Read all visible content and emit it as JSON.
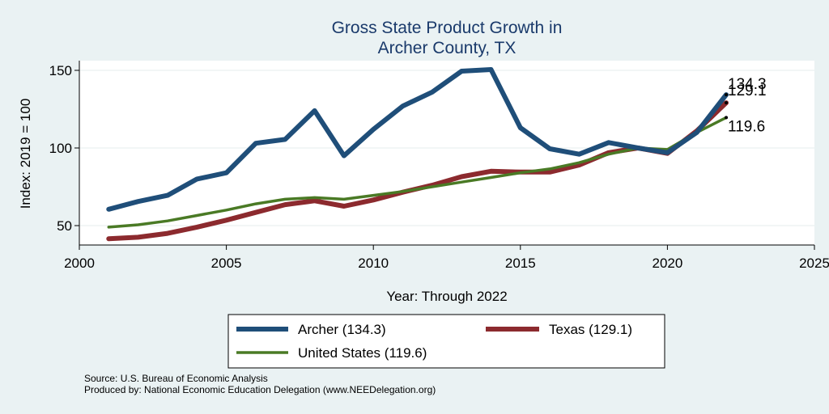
{
  "chart_data": {
    "type": "line",
    "title_lines": [
      "Gross State Product Growth in",
      "Archer County, TX"
    ],
    "xlabel": "Year: Through 2022",
    "ylabel": "Index: 2019 = 100",
    "xlim": [
      2000,
      2025
    ],
    "ylim": [
      40,
      155
    ],
    "x_ticks": [
      2000,
      2005,
      2010,
      2015,
      2020,
      2025
    ],
    "y_ticks": [
      50,
      100,
      150
    ],
    "grid": true,
    "x": [
      2001,
      2002,
      2003,
      2004,
      2005,
      2006,
      2007,
      2008,
      2009,
      2010,
      2011,
      2012,
      2013,
      2014,
      2015,
      2016,
      2017,
      2018,
      2019,
      2020,
      2021,
      2022
    ],
    "series": [
      {
        "name": "Archer",
        "legend_label": "Archer  (134.3)",
        "end_label": "134.3",
        "color": "#1f4e79",
        "values": [
          60.5,
          65.5,
          69.5,
          80,
          84,
          103,
          105.5,
          124,
          95,
          112,
          127,
          136,
          149.5,
          150.5,
          113,
          99.5,
          96,
          103.5,
          100,
          97,
          110,
          134.3
        ]
      },
      {
        "name": "Texas",
        "legend_label": "Texas (129.1)",
        "end_label": "129.1",
        "color": "#8c2a2e",
        "values": [
          41.5,
          42.5,
          45,
          49,
          53.5,
          58.5,
          63.5,
          66,
          62.5,
          66.5,
          71.5,
          76,
          81.5,
          85,
          84.5,
          84.5,
          89,
          97,
          100,
          96.5,
          111,
          129.1
        ]
      },
      {
        "name": "United States",
        "legend_label": "United States (119.6)",
        "end_label": "119.6",
        "color": "#4a7a25",
        "values": [
          49,
          50.5,
          53,
          56.5,
          60,
          64,
          67,
          68,
          67,
          69.5,
          72,
          75,
          78,
          81,
          84,
          86.5,
          90.5,
          96,
          100,
          99,
          110,
          119.6
        ]
      }
    ]
  },
  "notes": {
    "source": "Source: U.S. Bureau of Economic Analysis",
    "produced_by": "Produced by: National Economic Education Delegation (www.NEEDelegation.org)"
  }
}
